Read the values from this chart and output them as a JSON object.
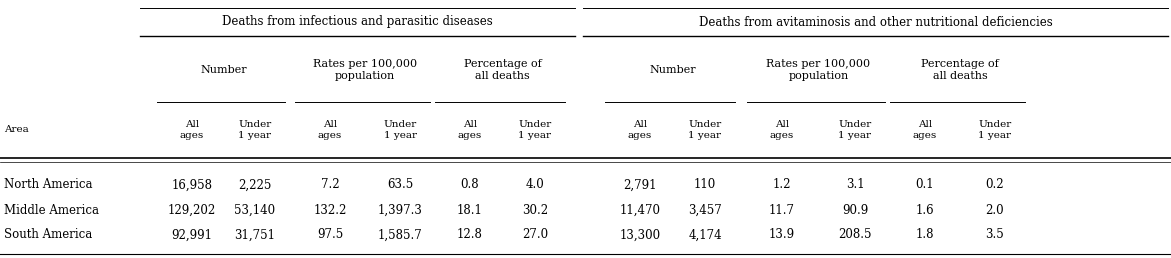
{
  "bg_color": "#ffffff",
  "areas": [
    "North America",
    "Middle America",
    "South America"
  ],
  "infectious_number_all": [
    "16,958",
    "129,202",
    "92,991"
  ],
  "infectious_number_under": [
    "2,225",
    "53,140",
    "31,751"
  ],
  "infectious_rates_all": [
    "7.2",
    "132.2",
    "97.5"
  ],
  "infectious_rates_under": [
    "63.5",
    "1,397.3",
    "1,585.7"
  ],
  "infectious_pct_all": [
    "0.8",
    "18.1",
    "12.8"
  ],
  "infectious_pct_under": [
    "4.0",
    "30.2",
    "27.0"
  ],
  "avit_number_all": [
    "2,791",
    "11,470",
    "13,300"
  ],
  "avit_number_under": [
    "110",
    "3,457",
    "4,174"
  ],
  "avit_rates_all": [
    "1.2",
    "11.7",
    "13.9"
  ],
  "avit_rates_under": [
    "3.1",
    "90.9",
    "208.5"
  ],
  "avit_pct_all": [
    "0.1",
    "1.6",
    "1.8"
  ],
  "avit_pct_under": [
    "0.2",
    "2.0",
    "3.5"
  ],
  "col_header_1": "Deaths from infectious and parasitic diseases",
  "col_header_2": "Deaths from avitaminosis and other nutritional deficiencies",
  "sub_header_number": "Number",
  "sub_header_rates": "Rates per 100,000\npopulation",
  "sub_header_pct": "Percentage of\nall deaths",
  "col_all": "All\nages",
  "col_under": "Under\n1 year",
  "area_label": "Area"
}
